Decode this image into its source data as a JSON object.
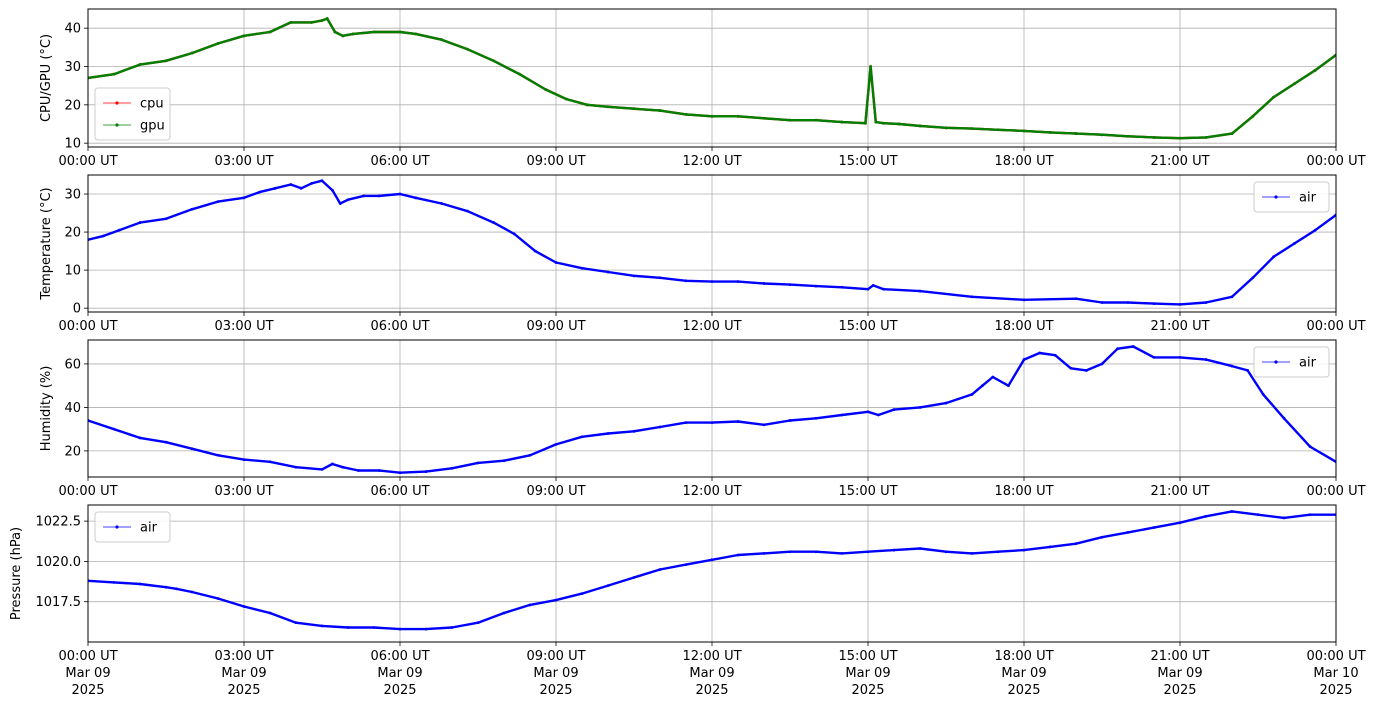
{
  "chart_data": [
    {
      "type": "line",
      "ylabel": "CPU/GPU (°C)",
      "ylim": [
        9,
        45
      ],
      "yticks": [
        10,
        20,
        30,
        40
      ],
      "ytick_labels": [
        "10",
        "20",
        "30",
        "40"
      ],
      "xlim_hours": [
        0,
        24
      ],
      "x_tick_labels": [
        "00:00 UT",
        "03:00 UT",
        "06:00 UT",
        "09:00 UT",
        "12:00 UT",
        "15:00 UT",
        "18:00 UT",
        "21:00 UT",
        "00:00 UT"
      ],
      "grid": true,
      "legend": "lower-left",
      "series": [
        {
          "name": "cpu",
          "color": "#ff0000",
          "x_hours": [
            0,
            0.5,
            1,
            1.5,
            2,
            2.5,
            3,
            3.5,
            3.9,
            4.3,
            4.5,
            4.6,
            4.75,
            4.9,
            5.1,
            5.5,
            6,
            6.3,
            6.8,
            7.3,
            7.8,
            8.3,
            8.8,
            9.2,
            9.6,
            10,
            10.5,
            11,
            11.5,
            12,
            12.5,
            13,
            13.5,
            14,
            14.5,
            14.95,
            15.05,
            15.15,
            15.3,
            15.6,
            16,
            16.5,
            17,
            17.5,
            18,
            18.5,
            19,
            19.5,
            20,
            20.5,
            21,
            21.5,
            22,
            22.4,
            22.8,
            23.2,
            23.6,
            24
          ],
          "values": [
            27,
            28,
            30.5,
            31.5,
            33.5,
            36,
            38,
            39,
            41.5,
            41.5,
            42,
            42.5,
            39,
            38,
            38.5,
            39,
            39,
            38.5,
            37,
            34.5,
            31.5,
            28,
            24,
            21.5,
            20,
            19.5,
            19,
            18.5,
            17.5,
            17,
            17,
            16.5,
            16,
            16,
            15.5,
            15.2,
            30,
            15.5,
            15.2,
            15,
            14.5,
            14,
            13.8,
            13.5,
            13.2,
            12.8,
            12.5,
            12.2,
            11.8,
            11.5,
            11.3,
            11.5,
            12.5,
            17,
            22,
            25.5,
            29,
            33
          ]
        },
        {
          "name": "gpu",
          "color": "#008000",
          "x_hours": [
            0,
            0.5,
            1,
            1.5,
            2,
            2.5,
            3,
            3.5,
            3.9,
            4.3,
            4.5,
            4.6,
            4.75,
            4.9,
            5.1,
            5.5,
            6,
            6.3,
            6.8,
            7.3,
            7.8,
            8.3,
            8.8,
            9.2,
            9.6,
            10,
            10.5,
            11,
            11.5,
            12,
            12.5,
            13,
            13.5,
            14,
            14.5,
            14.95,
            15.05,
            15.15,
            15.3,
            15.6,
            16,
            16.5,
            17,
            17.5,
            18,
            18.5,
            19,
            19.5,
            20,
            20.5,
            21,
            21.5,
            22,
            22.4,
            22.8,
            23.2,
            23.6,
            24
          ],
          "values": [
            27,
            28,
            30.5,
            31.5,
            33.5,
            36,
            38,
            39,
            41.5,
            41.5,
            42,
            42.5,
            39,
            38,
            38.5,
            39,
            39,
            38.5,
            37,
            34.5,
            31.5,
            28,
            24,
            21.5,
            20,
            19.5,
            19,
            18.5,
            17.5,
            17,
            17,
            16.5,
            16,
            16,
            15.5,
            15.2,
            30,
            15.5,
            15.2,
            15,
            14.5,
            14,
            13.8,
            13.5,
            13.2,
            12.8,
            12.5,
            12.2,
            11.8,
            11.5,
            11.3,
            11.5,
            12.5,
            17,
            22,
            25.5,
            29,
            33
          ]
        }
      ]
    },
    {
      "type": "line",
      "ylabel": "Temperature (°C)",
      "ylim": [
        -1,
        35
      ],
      "yticks": [
        0,
        10,
        20,
        30
      ],
      "ytick_labels": [
        "0",
        "10",
        "20",
        "30"
      ],
      "xlim_hours": [
        0,
        24
      ],
      "x_tick_labels": [
        "00:00 UT",
        "03:00 UT",
        "06:00 UT",
        "09:00 UT",
        "12:00 UT",
        "15:00 UT",
        "18:00 UT",
        "21:00 UT",
        "00:00 UT"
      ],
      "grid": true,
      "legend": "upper-right",
      "series": [
        {
          "name": "air",
          "color": "#0000ff",
          "x_hours": [
            0,
            0.3,
            0.6,
            1,
            1.5,
            2,
            2.5,
            3,
            3.3,
            3.6,
            3.9,
            4.1,
            4.3,
            4.5,
            4.7,
            4.85,
            5,
            5.3,
            5.6,
            6,
            6.3,
            6.8,
            7.3,
            7.8,
            8.2,
            8.6,
            9,
            9.5,
            10,
            10.5,
            11,
            11.5,
            12,
            12.5,
            13,
            13.5,
            14,
            14.5,
            15,
            15.1,
            15.3,
            16,
            17,
            18,
            19,
            19.5,
            20,
            20.5,
            21,
            21.5,
            22,
            22.4,
            22.8,
            23.2,
            23.6,
            24
          ],
          "values": [
            18,
            19,
            20.5,
            22.5,
            23.5,
            26,
            28,
            29,
            30.5,
            31.5,
            32.5,
            31.5,
            32.8,
            33.5,
            31,
            27.5,
            28.5,
            29.5,
            29.5,
            30,
            29,
            27.5,
            25.5,
            22.5,
            19.5,
            15,
            12,
            10.5,
            9.5,
            8.5,
            8,
            7.2,
            7,
            7,
            6.5,
            6.2,
            5.8,
            5.5,
            5,
            6,
            5,
            4.5,
            3,
            2.2,
            2.5,
            1.5,
            1.5,
            1.2,
            1,
            1.5,
            3,
            8,
            13.5,
            17,
            20.5,
            24.5
          ]
        }
      ]
    },
    {
      "type": "line",
      "ylabel": "Humidity (%)",
      "ylim": [
        8,
        71
      ],
      "yticks": [
        20,
        40,
        60
      ],
      "ytick_labels": [
        "20",
        "40",
        "60"
      ],
      "xlim_hours": [
        0,
        24
      ],
      "x_tick_labels": [
        "00:00 UT",
        "03:00 UT",
        "06:00 UT",
        "09:00 UT",
        "12:00 UT",
        "15:00 UT",
        "18:00 UT",
        "21:00 UT",
        "00:00 UT"
      ],
      "grid": true,
      "legend": "upper-right",
      "series": [
        {
          "name": "air",
          "color": "#0000ff",
          "x_hours": [
            0,
            0.5,
            1,
            1.5,
            2,
            2.5,
            3,
            3.5,
            4,
            4.5,
            4.7,
            4.9,
            5.2,
            5.6,
            6,
            6.5,
            7,
            7.5,
            8,
            8.5,
            9,
            9.5,
            10,
            10.5,
            11,
            11.5,
            12,
            12.5,
            13,
            13.5,
            14,
            14.5,
            15,
            15.2,
            15.5,
            16,
            16.5,
            17,
            17.2,
            17.4,
            17.7,
            18,
            18.3,
            18.6,
            18.9,
            19.2,
            19.5,
            19.8,
            20.1,
            20.5,
            21,
            21.5,
            22,
            22.3,
            22.6,
            23,
            23.5,
            24
          ],
          "values": [
            34,
            30,
            26,
            24,
            21,
            18,
            16,
            15,
            12.5,
            11.5,
            14,
            12.5,
            11,
            11,
            10,
            10.5,
            12,
            14.5,
            15.5,
            18,
            23,
            26.5,
            28,
            29,
            31,
            33,
            33,
            33.5,
            32,
            34,
            35,
            36.5,
            38,
            36.5,
            39,
            40,
            42,
            46,
            50,
            54,
            50,
            62,
            65,
            64,
            58,
            57,
            60,
            67,
            68,
            63,
            63,
            62,
            59,
            57,
            46,
            35,
            22,
            15
          ]
        }
      ]
    },
    {
      "type": "line",
      "ylabel": "Pressure (hPa)",
      "ylim": [
        1015,
        1023.5
      ],
      "yticks": [
        1017.5,
        1020.0,
        1022.5
      ],
      "ytick_labels": [
        "1017.5",
        "1020.0",
        "1022.5"
      ],
      "xlim_hours": [
        0,
        24
      ],
      "x_tick_labels": [
        "00:00 UT\nMar 09\n2025",
        "03:00 UT\nMar 09\n2025",
        "06:00 UT\nMar 09\n2025",
        "09:00 UT\nMar 09\n2025",
        "12:00 UT\nMar 09\n2025",
        "15:00 UT\nMar 09\n2025",
        "18:00 UT\nMar 09\n2025",
        "21:00 UT\nMar 09\n2025",
        "00:00 UT\nMar 10\n2025"
      ],
      "grid": true,
      "legend": "upper-left",
      "series": [
        {
          "name": "air",
          "color": "#0000ff",
          "x_hours": [
            0,
            0.5,
            1,
            1.5,
            1.7,
            2,
            2.5,
            3,
            3.5,
            4,
            4.5,
            5,
            5.5,
            6,
            6.5,
            7,
            7.5,
            8,
            8.5,
            9,
            9.5,
            10,
            10.5,
            11,
            11.5,
            12,
            12.5,
            13,
            13.5,
            14,
            14.5,
            15,
            15.5,
            16,
            16.5,
            17,
            17.5,
            18,
            18.5,
            19,
            19.5,
            20,
            20.5,
            21,
            21.5,
            22,
            22.5,
            23,
            23.5,
            24
          ],
          "values": [
            1018.8,
            1018.7,
            1018.6,
            1018.4,
            1018.3,
            1018.1,
            1017.7,
            1017.2,
            1016.8,
            1016.2,
            1016,
            1015.9,
            1015.9,
            1015.8,
            1015.8,
            1015.9,
            1016.2,
            1016.8,
            1017.3,
            1017.6,
            1018,
            1018.5,
            1019,
            1019.5,
            1019.8,
            1020.1,
            1020.4,
            1020.5,
            1020.6,
            1020.6,
            1020.5,
            1020.6,
            1020.7,
            1020.8,
            1020.6,
            1020.5,
            1020.6,
            1020.7,
            1020.9,
            1021.1,
            1021.5,
            1021.8,
            1022.1,
            1022.4,
            1022.8,
            1023.1,
            1022.9,
            1022.7,
            1022.9,
            1022.9
          ]
        }
      ]
    }
  ]
}
